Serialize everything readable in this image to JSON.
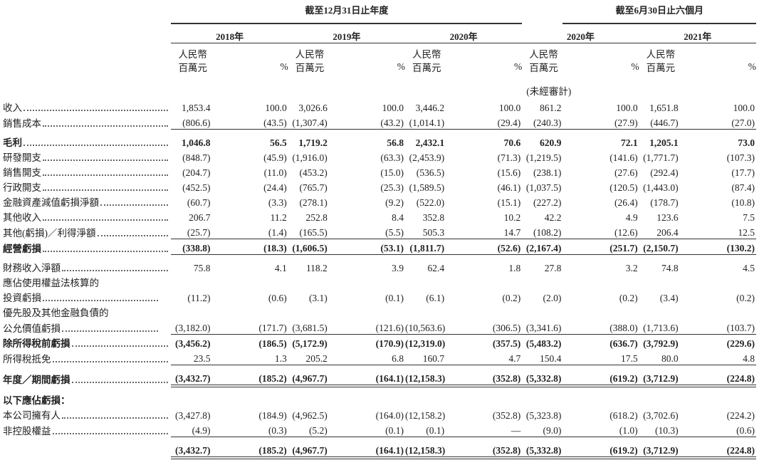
{
  "header": {
    "groups": [
      {
        "label": "截至12月31日止年度",
        "columns": [
          "2018年",
          "2019年",
          "2020年"
        ]
      },
      {
        "label": "截至6月30日止六個月",
        "columns": [
          "2020年",
          "2021年"
        ]
      }
    ],
    "unit_line1": "人民幣",
    "unit_line2": "百萬元",
    "percent": "%",
    "unaudited": "(未經審計)"
  },
  "table": {
    "rows": [
      {
        "label": "收入",
        "values": [
          "1,853.4",
          "100.0",
          "3,026.6",
          "100.0",
          "3,446.2",
          "100.0",
          "861.2",
          "100.0",
          "1,651.8",
          "100.0"
        ]
      },
      {
        "label": "銷售成本",
        "values": [
          "(806.6)",
          "(43.5)",
          "(1,307.4)",
          "(43.2)",
          "(1,014.1)",
          "(29.4)",
          "(240.3)",
          "(27.9)",
          "(446.7)",
          "(27.0)"
        ],
        "rule_below": "single"
      },
      {
        "label": "毛利",
        "bold": true,
        "values": [
          "1,046.8",
          "56.5",
          "1,719.2",
          "56.8",
          "2,432.1",
          "70.6",
          "620.9",
          "72.1",
          "1,205.1",
          "73.0"
        ]
      },
      {
        "label": "研發開支",
        "values": [
          "(848.7)",
          "(45.9)",
          "(1,916.0)",
          "(63.3)",
          "(2,453.9)",
          "(71.3)",
          "(1,219.5)",
          "(141.6)",
          "(1,771.7)",
          "(107.3)"
        ]
      },
      {
        "label": "銷售開支",
        "values": [
          "(204.7)",
          "(11.0)",
          "(453.2)",
          "(15.0)",
          "(536.5)",
          "(15.6)",
          "(238.1)",
          "(27.6)",
          "(292.4)",
          "(17.7)"
        ]
      },
      {
        "label": "行政開支",
        "values": [
          "(452.5)",
          "(24.4)",
          "(765.7)",
          "(25.3)",
          "(1,589.5)",
          "(46.1)",
          "(1,037.5)",
          "(120.5)",
          "(1,443.0)",
          "(87.4)"
        ]
      },
      {
        "label": "金融資產減值虧損淨額",
        "values": [
          "(60.7)",
          "(3.3)",
          "(278.1)",
          "(9.2)",
          "(522.0)",
          "(15.1)",
          "(227.2)",
          "(26.4)",
          "(178.7)",
          "(10.8)"
        ]
      },
      {
        "label": "其他收入",
        "values": [
          "206.7",
          "11.2",
          "252.8",
          "8.4",
          "352.8",
          "10.2",
          "42.2",
          "4.9",
          "123.6",
          "7.5"
        ]
      },
      {
        "label": "其他(虧損)／利得淨額",
        "values": [
          "(25.7)",
          "(1.4)",
          "(165.5)",
          "(5.5)",
          "505.3",
          "14.7",
          "(108.2)",
          "(12.6)",
          "206.4",
          "12.5"
        ],
        "rule_below": "single"
      },
      {
        "label": "經營虧損",
        "bold": true,
        "values": [
          "(338.8)",
          "(18.3)",
          "(1,606.5)",
          "(53.1)",
          "(1,811.7)",
          "(52.6)",
          "(2,167.4)",
          "(251.7)",
          "(2,150.7)",
          "(130.2)"
        ],
        "rule_below": "single"
      },
      {
        "label": "財務收入淨額",
        "values": [
          "75.8",
          "4.1",
          "118.2",
          "3.9",
          "62.4",
          "1.8",
          "27.8",
          "3.2",
          "74.8",
          "4.5"
        ]
      },
      {
        "label": "應佔使用權益法核算的"
      },
      {
        "label": "投資虧損",
        "indent": true,
        "values": [
          "(11.2)",
          "(0.6)",
          "(3.1)",
          "(0.1)",
          "(6.1)",
          "(0.2)",
          "(2.0)",
          "(0.2)",
          "(3.4)",
          "(0.2)"
        ]
      },
      {
        "label": "優先股及其他金融負債的"
      },
      {
        "label": "公允價值虧損",
        "indent": true,
        "values": [
          "(3,182.0)",
          "(171.7)",
          "(3,681.5)",
          "(121.6)",
          "(10,563.6)",
          "(306.5)",
          "(3,341.6)",
          "(388.0)",
          "(1,713.6)",
          "(103.7)"
        ],
        "rule_below": "single"
      },
      {
        "label": "除所得稅前虧損",
        "bold": true,
        "values": [
          "(3,456.2)",
          "(186.5)",
          "(5,172.9)",
          "(170.9)",
          "(12,319.0)",
          "(357.5)",
          "(5,483.2)",
          "(636.7)",
          "(3,792.9)",
          "(229.6)"
        ]
      },
      {
        "label": "所得稅抵免",
        "values": [
          "23.5",
          "1.3",
          "205.2",
          "6.8",
          "160.7",
          "4.7",
          "150.4",
          "17.5",
          "80.0",
          "4.8"
        ],
        "rule_below": "single"
      },
      {
        "label": "年度／期間虧損",
        "bold": true,
        "values": [
          "(3,432.7)",
          "(185.2)",
          "(4,967.7)",
          "(164.1)",
          "(12,158.3)",
          "(352.8)",
          "(5,332.8)",
          "(619.2)",
          "(3,712.9)",
          "(224.8)"
        ],
        "rule_below": "double"
      },
      {
        "label": "以下應佔虧損：",
        "bold": true
      },
      {
        "label": "本公司擁有人",
        "values": [
          "(3,427.8)",
          "(184.9)",
          "(4,962.5)",
          "(164.0)",
          "(12,158.2)",
          "(352.8)",
          "(5,323.8)",
          "(618.2)",
          "(3,702.6)",
          "(224.2)"
        ]
      },
      {
        "label": "非控股權益",
        "values": [
          "(4.9)",
          "(0.3)",
          "(5.2)",
          "(0.1)",
          "(0.1)",
          "—",
          "(9.0)",
          "(1.0)",
          "(10.3)",
          "(0.6)"
        ],
        "rule_below": "single"
      },
      {
        "bold": true,
        "values": [
          "(3,432.7)",
          "(185.2)",
          "(4,967.7)",
          "(164.1)",
          "(12,158.3)",
          "(352.8)",
          "(5,332.8)",
          "(619.2)",
          "(3,712.9)",
          "(224.8)"
        ],
        "rule_below": "double"
      }
    ]
  }
}
